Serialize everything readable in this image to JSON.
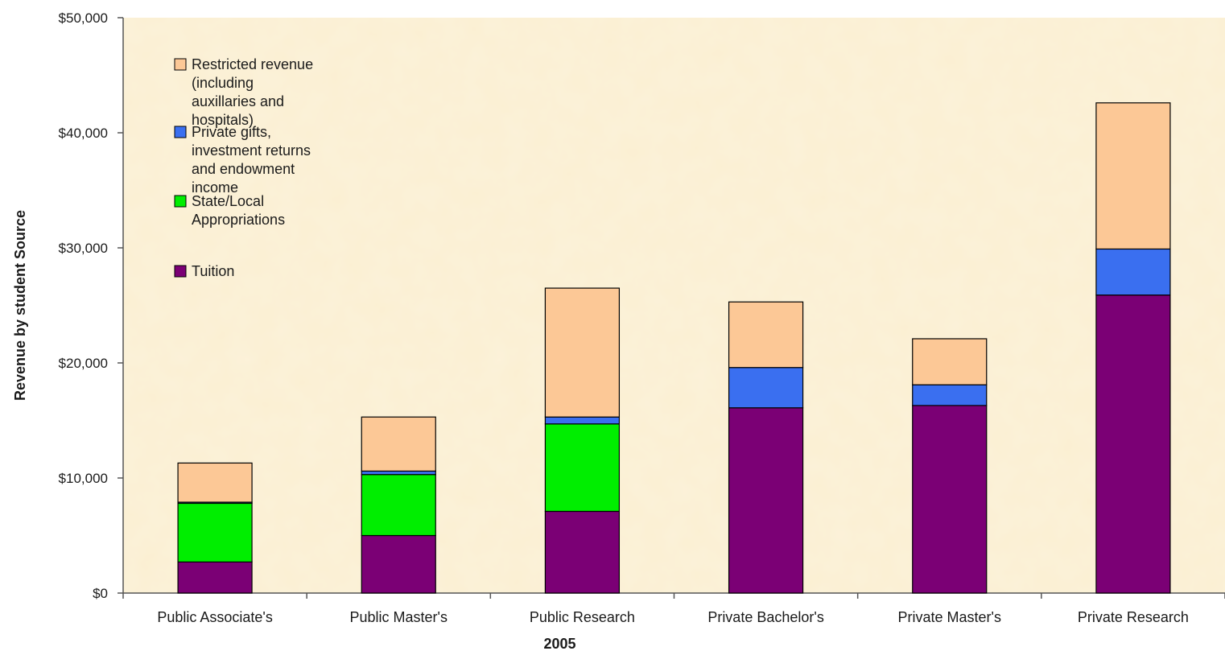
{
  "chart_data": {
    "type": "bar",
    "stacked": true,
    "xlabel": "2005",
    "ylabel": "Revenue by student Source",
    "ylim": [
      0,
      50000
    ],
    "yticks": [
      "$0",
      "$10,000",
      "$20,000",
      "$30,000",
      "$40,000",
      "$50,000"
    ],
    "categories": [
      "Public Associate's",
      "Public Master's",
      "Public Research",
      "Private Bachelor's",
      "Private Master's",
      "Private Research"
    ],
    "series": [
      {
        "name": "Tuition",
        "color": "#7b0075",
        "values": [
          2700,
          5000,
          7100,
          16100,
          16300,
          25900
        ]
      },
      {
        "name": "State/Local Appropriations",
        "color": "#00ee00",
        "values": [
          5100,
          5300,
          7600,
          0,
          0,
          0
        ]
      },
      {
        "name": "Private gifts, investment returns and endowment income",
        "color": "#3a6ff0",
        "values": [
          100,
          300,
          600,
          3500,
          1800,
          4000
        ]
      },
      {
        "name": "Restricted revenue (including auxillaries and hospitals)",
        "color": "#fcc896",
        "values": [
          3400,
          4700,
          11200,
          5700,
          4000,
          12700
        ]
      }
    ],
    "legend_placement": "top-left",
    "legend_entries": [
      {
        "series": 3,
        "lines": [
          "Restricted revenue",
          "(including",
          "auxillaries and",
          "hospitals)"
        ]
      },
      {
        "series": 2,
        "lines": [
          "Private gifts,",
          "investment returns",
          "and endowment",
          "income"
        ]
      },
      {
        "series": 1,
        "lines": [
          "State/Local",
          "Appropriations"
        ]
      },
      {
        "series": 0,
        "lines": [
          "Tuition"
        ]
      }
    ],
    "plot_background": "#fbefd2",
    "grid": false
  }
}
